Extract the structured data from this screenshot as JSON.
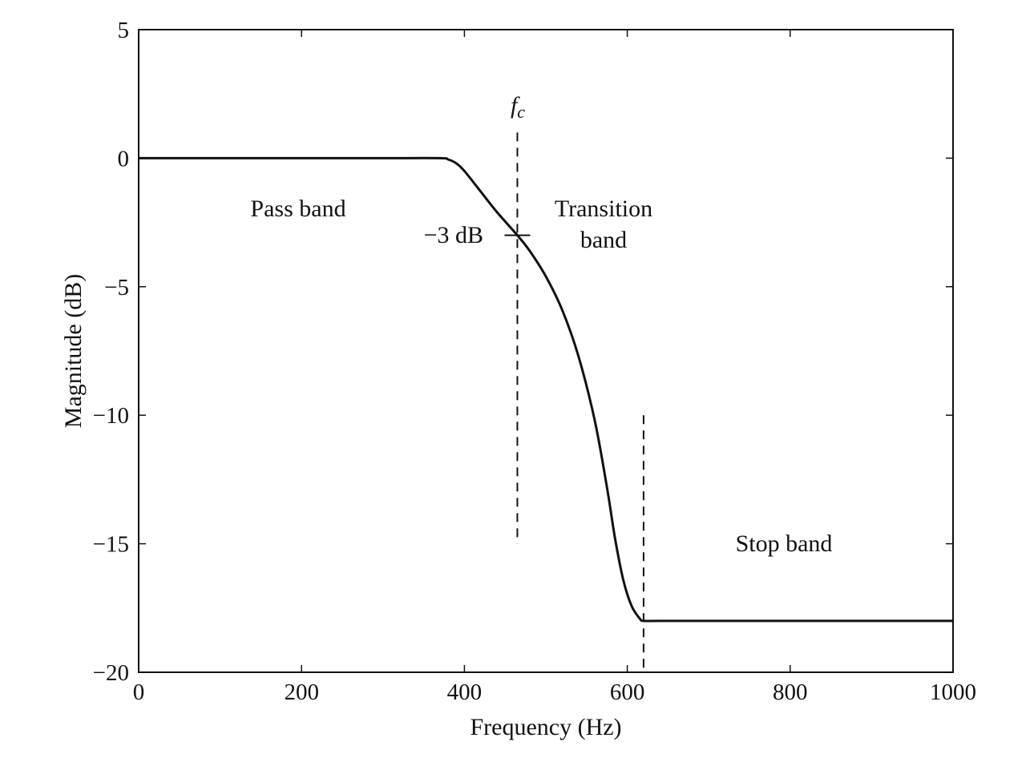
{
  "chart_data": {
    "type": "line",
    "title": "",
    "xlabel": "Frequency (Hz)",
    "ylabel": "Magnitude (dB)",
    "xlim": [
      0,
      1000
    ],
    "ylim": [
      -20,
      5
    ],
    "xticks": [
      0,
      200,
      400,
      600,
      800,
      1000
    ],
    "yticks": [
      5,
      0,
      -5,
      -10,
      -15,
      -20
    ],
    "x_tick_labels": [
      "0",
      "200",
      "400",
      "600",
      "800",
      "1000"
    ],
    "y_tick_labels": [
      "5",
      "0",
      "−5",
      "−10",
      "−15",
      "−20"
    ],
    "grid": false,
    "legend": "none",
    "series": [
      {
        "x": [
          0,
          100,
          200,
          300,
          370,
          380,
          390,
          400,
          420,
          440,
          465,
          480,
          500,
          520,
          540,
          560,
          575,
          585,
          595,
          605,
          615,
          620,
          640,
          700,
          800,
          900,
          1000
        ],
        "y": [
          0,
          0,
          0,
          0,
          0,
          -0.05,
          -0.2,
          -0.5,
          -1.3,
          -2.1,
          -3.0,
          -3.6,
          -4.6,
          -5.9,
          -7.7,
          -10.2,
          -12.8,
          -14.8,
          -16.4,
          -17.4,
          -17.9,
          -18.0,
          -18.0,
          -18.0,
          -18.0,
          -18.0,
          -18.0
        ]
      }
    ],
    "annotations": {
      "pass_band": "Pass band",
      "transition_line1": "Transition",
      "transition_line2": "band",
      "stop_band": "Stop band",
      "minus3db": "−3 dB",
      "fc_main": "f",
      "fc_sub": "c"
    },
    "cutoff_line": {
      "x": 465,
      "y_from": -15,
      "y_to": 1
    },
    "stopband_edge_line": {
      "x": 620,
      "y_from": -20,
      "y_to": -10
    },
    "minus3db_point": {
      "x": 465,
      "y": -3
    }
  }
}
